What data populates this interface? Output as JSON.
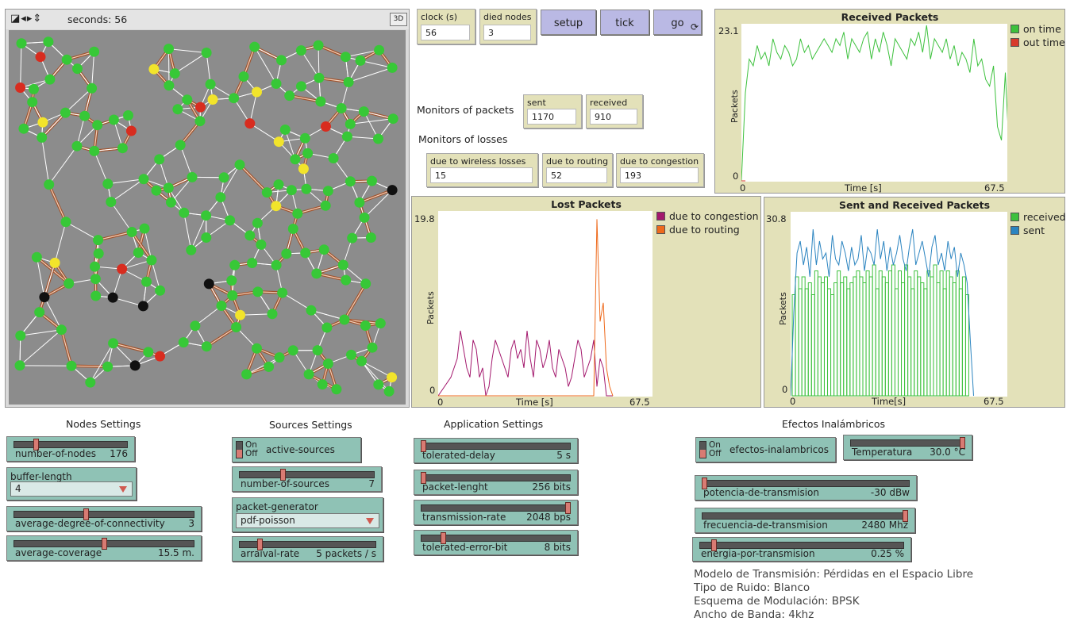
{
  "view": {
    "ticks_text": "seconds: 56",
    "btn_3d": "3D",
    "controls_icons": [
      "view-toggle-icon",
      "arrow-left-right-icon",
      "arrow-up-down-icon"
    ]
  },
  "monitors": {
    "clock": {
      "label": "clock (s)",
      "value": "56"
    },
    "died": {
      "label": "died nodes",
      "value": "3"
    },
    "sent": {
      "label": "sent",
      "value": "1170"
    },
    "received": {
      "label": "received",
      "value": "910"
    },
    "wireless": {
      "label": "due to wireless losses",
      "value": "15"
    },
    "routing": {
      "label": "due to routing",
      "value": "52"
    },
    "congestion": {
      "label": "due to congestion",
      "value": "193"
    }
  },
  "buttons": {
    "setup": "setup",
    "tick": "tick",
    "go": "go"
  },
  "labels": {
    "monitors_packets": "Monitors of packets",
    "monitors_losses": "Monitors of losses",
    "nodes_settings": "Nodes Settings",
    "sources_settings": "Sources Settings",
    "app_settings": "Application Settings",
    "efectos": "Efectos Inalámbricos"
  },
  "sliders": {
    "nodes": {
      "name": "number-of-nodes",
      "value": "176",
      "fraction": 0.18
    },
    "degree": {
      "name": "average-degree-of-connectivity",
      "value": "3",
      "fraction": 0.4
    },
    "coverage": {
      "name": "average-coverage",
      "value": "15.5 m.",
      "fraction": 0.5
    },
    "sources": {
      "name": "number-of-sources",
      "value": "7",
      "fraction": 0.32
    },
    "arrival": {
      "name": "arraival-rate",
      "value": "5 packets / s",
      "fraction": 0.14
    },
    "delay": {
      "name": "tolerated-delay",
      "value": "5 s",
      "fraction": 0.0
    },
    "packet": {
      "name": "packet-lenght",
      "value": "256 bits",
      "fraction": 0.0
    },
    "transrate": {
      "name": "transmission-rate",
      "value": "2048 bps",
      "fraction": 1.0
    },
    "errorbit": {
      "name": "tolerated-error-bit",
      "value": "8 bits",
      "fraction": 0.14
    },
    "temperatura": {
      "name": "Temperatura",
      "value": "30.0 °C",
      "fraction": 1.0
    },
    "potencia": {
      "name": "potencia-de-transmision",
      "value": "-30 dBw",
      "fraction": 0.0
    },
    "frecuencia": {
      "name": "frecuencia-de-transmision",
      "value": "2480 Mhz",
      "fraction": 1.0
    },
    "energia": {
      "name": "energia-por-transmision",
      "value": "0.25 %",
      "fraction": 0.06
    }
  },
  "choosers": {
    "buffer": {
      "name": "buffer-length",
      "value": "4"
    },
    "generator": {
      "name": "packet-generator",
      "value": "pdf-poisson"
    }
  },
  "switches": {
    "active": {
      "on": "On",
      "off": "Off",
      "name": "active-sources"
    },
    "efectos": {
      "on": "On",
      "off": "Off",
      "name": "efectos-inalambricos"
    }
  },
  "info_lines": [
    "Modelo de Transmisión: Pérdidas en el Espacio Libre",
    "Tipo de Ruido: Blanco",
    "Esquema de Modulación: BPSK",
    "Ancho de Banda: 4khz"
  ],
  "chart_data": [
    {
      "type": "line",
      "title": "Received Packets",
      "xlabel": "Time [s]",
      "ylabel": "Packets",
      "x_tick_labels": [
        "0",
        "67.5"
      ],
      "y_tick_labels": [
        "0",
        "23.1"
      ],
      "xlim": [
        0,
        67.5
      ],
      "ylim": [
        0,
        23.1
      ],
      "legend_position": "right",
      "series": [
        {
          "name": "on time",
          "color": "#3dc13d",
          "values": [
            0,
            13,
            18,
            17,
            20,
            18,
            19,
            17,
            21,
            19,
            18,
            20,
            19,
            17,
            18,
            21,
            19,
            20,
            18,
            19,
            20,
            21,
            20,
            19,
            21,
            20,
            22,
            18,
            21,
            20,
            19,
            21,
            22,
            18,
            21,
            19,
            22,
            20,
            17,
            21,
            20,
            19,
            18,
            21,
            20,
            22,
            19,
            23,
            18,
            21,
            20,
            19,
            21,
            18,
            20,
            17,
            19,
            18,
            16,
            21,
            17,
            18,
            15,
            14,
            17,
            8,
            6,
            16,
            4
          ]
        },
        {
          "name": "out time",
          "color": "#d83a2c",
          "values": [
            0,
            0
          ]
        }
      ]
    },
    {
      "type": "line",
      "title": "Lost Packets",
      "xlabel": "Time [s]",
      "ylabel": "Packets",
      "x_tick_labels": [
        "0",
        "67.5"
      ],
      "y_tick_labels": [
        "0",
        "19.8"
      ],
      "xlim": [
        0,
        67.5
      ],
      "ylim": [
        0,
        19.8
      ],
      "legend_position": "right",
      "series": [
        {
          "name": "due to congestion",
          "color": "#a3186d",
          "x": [
            0,
            4,
            6,
            7,
            8,
            9,
            10,
            11,
            12,
            13,
            14,
            15,
            16,
            17,
            18,
            19,
            20,
            21,
            22,
            23,
            24,
            25,
            26,
            27,
            28,
            29,
            30,
            31,
            32,
            33,
            34,
            35,
            36,
            37,
            38,
            39,
            40,
            41,
            42,
            43,
            44,
            45,
            46,
            47,
            48,
            49,
            50,
            51,
            52,
            53,
            54,
            55
          ],
          "values": [
            0,
            2,
            4,
            7,
            5,
            3,
            2,
            6,
            5,
            2,
            3,
            0,
            1,
            4,
            6,
            5,
            4,
            3,
            2,
            5,
            6,
            4,
            5,
            3,
            7,
            4,
            2,
            6,
            5,
            3,
            4,
            6,
            3,
            2,
            5,
            4,
            3,
            1,
            2,
            4,
            6,
            5,
            2,
            3,
            4,
            6,
            1,
            4,
            3,
            0,
            0,
            0
          ]
        },
        {
          "name": "due to routing",
          "color": "#ee6a1c",
          "x": [
            0,
            48,
            49,
            50,
            51,
            52,
            53,
            54,
            55
          ],
          "values": [
            0,
            0,
            0,
            19,
            8,
            10,
            3,
            1,
            0
          ]
        }
      ]
    },
    {
      "type": "line",
      "title": "Sent and Received Packets",
      "xlabel": "Time[s]",
      "ylabel": "Packets",
      "x_tick_labels": [
        "0",
        "67.5"
      ],
      "y_tick_labels": [
        "0",
        "30.8"
      ],
      "xlim": [
        0,
        67.5
      ],
      "ylim": [
        0,
        30.8
      ],
      "legend_position": "right",
      "series": [
        {
          "name": "received",
          "color": "#3dc13d",
          "style": "bar",
          "values": [
            0,
            17,
            20,
            18,
            20,
            18,
            19,
            17,
            21,
            20,
            19,
            20,
            18,
            17,
            19,
            21,
            19,
            20,
            18,
            19,
            20,
            21,
            20,
            19,
            21,
            20,
            22,
            18,
            21,
            20,
            19,
            21,
            22,
            18,
            21,
            19,
            22,
            20,
            18,
            21,
            20,
            19,
            18,
            21,
            20,
            22,
            19,
            21,
            18,
            21,
            20,
            19,
            21,
            18,
            20,
            17,
            0
          ]
        },
        {
          "name": "sent",
          "color": "#2b84c0",
          "values": [
            0,
            14,
            24,
            26,
            22,
            25,
            20,
            28,
            22,
            26,
            23,
            24,
            20,
            27,
            23,
            22,
            26,
            24,
            21,
            25,
            22,
            23,
            27,
            21,
            25,
            24,
            22,
            28,
            23,
            26,
            21,
            25,
            22,
            24,
            27,
            23,
            21,
            25,
            28,
            22,
            24,
            26,
            23,
            20,
            25,
            27,
            22,
            24,
            21,
            26,
            23,
            25,
            20,
            24,
            22,
            19,
            9,
            0
          ]
        }
      ]
    }
  ]
}
